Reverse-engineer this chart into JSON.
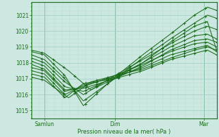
{
  "xlabel": "Pression niveau de la mer( hPa )",
  "xtick_labels": [
    "Samlun",
    "Dim",
    "Mar"
  ],
  "xtick_positions": [
    0.07,
    0.45,
    0.93
  ],
  "ylim": [
    1014.5,
    1021.8
  ],
  "yticks": [
    1015,
    1016,
    1017,
    1018,
    1019,
    1020,
    1021
  ],
  "bg_color": "#cce8e0",
  "plot_bg_color": "#cce8e0",
  "grid_major_color": "#99ccc0",
  "grid_minor_color": "#b8ddd6",
  "line_color": "#1a6b1a",
  "lines": [
    {
      "key_x": [
        0.0,
        0.07,
        0.18,
        0.28,
        0.45,
        0.6,
        0.75,
        0.88,
        0.95,
        1.0
      ],
      "key_y": [
        1018.7,
        1018.5,
        1017.2,
        1015.3,
        1017.1,
        1018.5,
        1019.8,
        1021.0,
        1021.5,
        1021.3
      ]
    },
    {
      "key_x": [
        0.0,
        0.07,
        0.18,
        0.28,
        0.45,
        0.6,
        0.75,
        0.88,
        0.95,
        1.0
      ],
      "key_y": [
        1018.5,
        1018.2,
        1017.0,
        1015.6,
        1017.0,
        1018.3,
        1019.5,
        1020.5,
        1021.0,
        1020.8
      ]
    },
    {
      "key_x": [
        0.0,
        0.07,
        0.18,
        0.28,
        0.45,
        0.6,
        0.75,
        0.88,
        0.95,
        1.0
      ],
      "key_y": [
        1018.3,
        1018.0,
        1016.8,
        1016.0,
        1017.2,
        1018.2,
        1019.2,
        1020.0,
        1020.3,
        1020.1
      ]
    },
    {
      "key_x": [
        0.0,
        0.07,
        0.18,
        0.28,
        0.45,
        0.6,
        0.75,
        0.88,
        0.95,
        1.0
      ],
      "key_y": [
        1018.1,
        1017.8,
        1016.5,
        1016.2,
        1017.1,
        1018.0,
        1019.0,
        1019.7,
        1019.8,
        1019.5
      ]
    },
    {
      "key_x": [
        0.0,
        0.07,
        0.18,
        0.28,
        0.45,
        0.6,
        0.75,
        0.88,
        0.95,
        1.0
      ],
      "key_y": [
        1017.9,
        1017.6,
        1016.3,
        1016.4,
        1017.0,
        1017.8,
        1018.8,
        1019.4,
        1019.5,
        1019.3
      ]
    },
    {
      "key_x": [
        0.0,
        0.07,
        0.18,
        0.28,
        0.45,
        0.6,
        0.75,
        0.88,
        0.95,
        1.0
      ],
      "key_y": [
        1017.7,
        1017.5,
        1016.2,
        1016.5,
        1017.2,
        1017.9,
        1018.7,
        1019.2,
        1019.3,
        1019.0
      ]
    },
    {
      "key_x": [
        0.0,
        0.07,
        0.18,
        0.28,
        0.45,
        0.6,
        0.75,
        0.88,
        0.95,
        1.0
      ],
      "key_y": [
        1017.5,
        1017.3,
        1016.0,
        1016.6,
        1017.1,
        1017.7,
        1018.5,
        1018.9,
        1019.1,
        1018.7
      ]
    },
    {
      "key_x": [
        0.0,
        0.07,
        0.18,
        0.28,
        0.45,
        0.6,
        0.75,
        0.88,
        0.95,
        1.0
      ],
      "key_y": [
        1017.3,
        1017.1,
        1015.8,
        1016.7,
        1017.0,
        1017.5,
        1018.2,
        1018.6,
        1018.8,
        1018.5
      ]
    },
    {
      "key_x": [
        0.0,
        0.07,
        0.2,
        0.32,
        0.45,
        0.6,
        0.75,
        0.88,
        0.95,
        1.0
      ],
      "key_y": [
        1018.8,
        1018.6,
        1017.5,
        1016.3,
        1017.0,
        1018.0,
        1019.3,
        1020.3,
        1020.6,
        1018.8
      ]
    },
    {
      "key_x": [
        0.0,
        0.07,
        0.2,
        0.32,
        0.45,
        0.6,
        0.75,
        0.88,
        0.95,
        1.0
      ],
      "key_y": [
        1017.1,
        1016.9,
        1015.8,
        1016.8,
        1017.2,
        1017.6,
        1018.3,
        1018.8,
        1019.0,
        1018.8
      ]
    }
  ]
}
